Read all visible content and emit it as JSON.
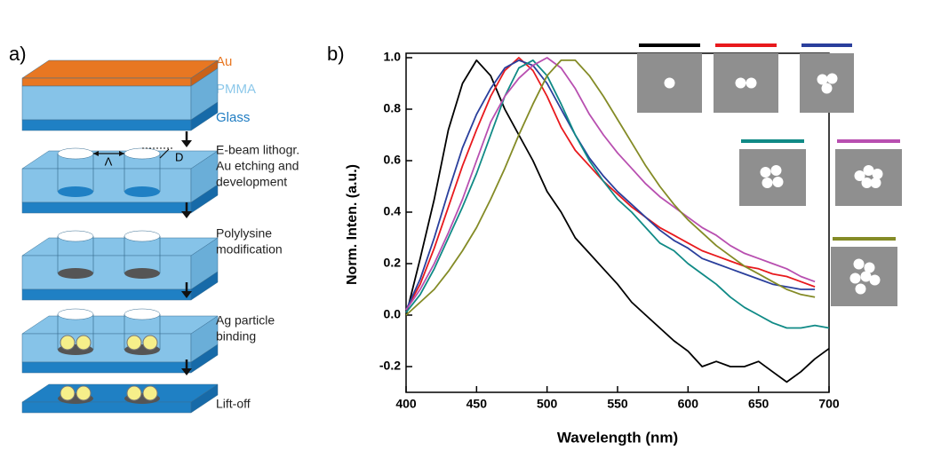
{
  "diagram": {
    "panel_label": "a)",
    "layers": [
      "Au",
      "PMMA",
      "Glass"
    ],
    "steps": [
      {
        "lines": [
          "E-beam lithogr.",
          "Au etching and",
          "development"
        ],
        "symbols": [
          "Λ",
          "D"
        ]
      },
      {
        "lines": [
          "Polylysine",
          "modification"
        ]
      },
      {
        "lines": [
          "Ag particle",
          "binding"
        ]
      },
      {
        "lines": [
          "Lift-off"
        ]
      }
    ]
  },
  "chart_data": {
    "type": "line",
    "panel_label": "b)",
    "x_label": "Wavelength (nm)",
    "y_label": "Norm. Inten. (a.u.)",
    "xlim": [
      400,
      700
    ],
    "ylim": [
      -0.3,
      1.0
    ],
    "xticks": [
      400,
      450,
      500,
      550,
      600,
      650,
      700
    ],
    "yticks": [
      -0.2,
      {
        "value": 0,
        "label": "0.0"
      },
      0.2,
      0.4,
      0.6,
      0.8,
      {
        "value": 1,
        "label": "1.0"
      }
    ],
    "grid": false,
    "x": [
      400,
      410,
      420,
      430,
      440,
      450,
      460,
      470,
      480,
      490,
      500,
      510,
      520,
      530,
      540,
      550,
      560,
      570,
      580,
      590,
      600,
      610,
      620,
      630,
      640,
      650,
      660,
      670,
      680,
      690,
      700
    ],
    "series": [
      {
        "color": "#000000",
        "values": [
          0.0,
          0.22,
          0.45,
          0.72,
          0.9,
          0.99,
          0.93,
          0.8,
          0.7,
          0.6,
          0.48,
          0.4,
          0.3,
          0.24,
          0.18,
          0.12,
          0.05,
          0.0,
          -0.05,
          -0.1,
          -0.14,
          -0.2,
          -0.18,
          -0.2,
          -0.2,
          -0.18,
          -0.22,
          -0.26,
          -0.22,
          -0.17,
          -0.13
        ]
      },
      {
        "color": "#e8191d",
        "values": [
          0.02,
          0.12,
          0.26,
          0.42,
          0.58,
          0.72,
          0.85,
          0.95,
          1.0,
          0.95,
          0.85,
          0.73,
          0.64,
          0.58,
          0.52,
          0.47,
          0.42,
          0.38,
          0.34,
          0.31,
          0.28,
          0.25,
          0.23,
          0.21,
          0.19,
          0.18,
          0.16,
          0.15,
          0.13,
          0.11,
          null
        ]
      },
      {
        "color": "#2a3f9c",
        "values": [
          0.02,
          0.14,
          0.3,
          0.48,
          0.65,
          0.78,
          0.88,
          0.96,
          0.99,
          0.97,
          0.9,
          0.8,
          0.7,
          0.61,
          0.54,
          0.48,
          0.43,
          0.38,
          0.33,
          0.29,
          0.26,
          0.22,
          0.2,
          0.18,
          0.16,
          0.14,
          0.12,
          0.11,
          0.1,
          0.1,
          null
        ]
      },
      {
        "color": "#108a86",
        "values": [
          0.01,
          0.08,
          0.18,
          0.3,
          0.42,
          0.55,
          0.7,
          0.85,
          0.96,
          0.99,
          0.93,
          0.82,
          0.7,
          0.6,
          0.52,
          0.45,
          0.4,
          0.34,
          0.28,
          0.25,
          0.2,
          0.16,
          0.12,
          0.07,
          0.03,
          0.0,
          -0.03,
          -0.05,
          -0.05,
          -0.04,
          -0.05
        ]
      },
      {
        "color": "#b84fb0",
        "values": [
          0.02,
          0.1,
          0.2,
          0.32,
          0.45,
          0.6,
          0.75,
          0.85,
          0.92,
          0.97,
          1.0,
          0.96,
          0.88,
          0.78,
          0.7,
          0.63,
          0.57,
          0.51,
          0.46,
          0.42,
          0.38,
          0.34,
          0.31,
          0.27,
          0.24,
          0.22,
          0.2,
          0.18,
          0.15,
          0.13,
          null
        ]
      },
      {
        "color": "#848b26",
        "values": [
          0.0,
          0.05,
          0.1,
          0.17,
          0.25,
          0.34,
          0.45,
          0.57,
          0.7,
          0.82,
          0.93,
          0.99,
          0.99,
          0.93,
          0.85,
          0.76,
          0.67,
          0.58,
          0.5,
          0.43,
          0.37,
          0.32,
          0.27,
          0.23,
          0.19,
          0.16,
          0.13,
          0.1,
          0.08,
          0.07,
          null
        ]
      }
    ]
  }
}
